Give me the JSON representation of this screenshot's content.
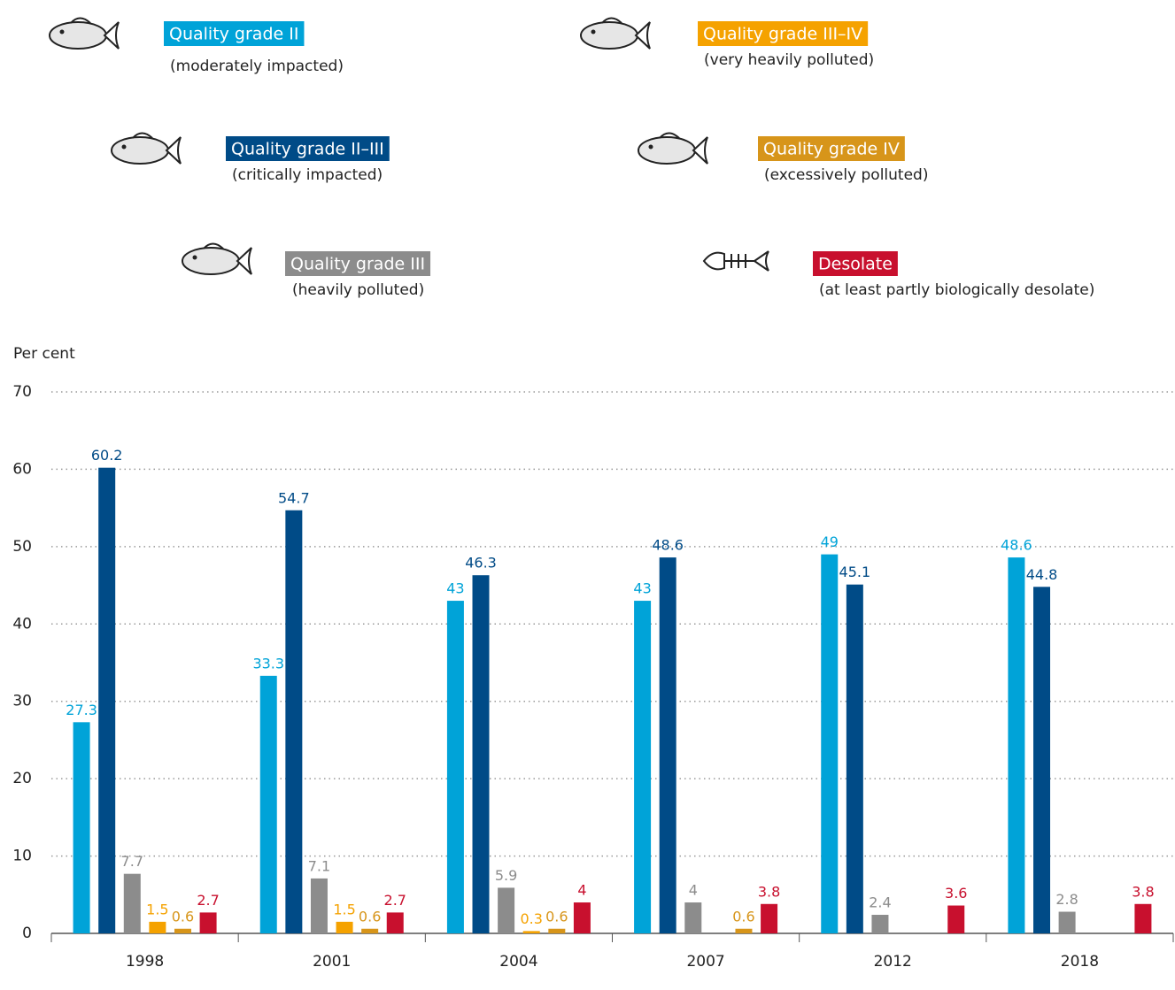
{
  "chart_data": {
    "type": "bar",
    "y_label": "Per cent",
    "categories": [
      "1998",
      "2001",
      "2004",
      "2007",
      "2012",
      "2018"
    ],
    "series": [
      {
        "name": "Quality grade II",
        "description": "(moderately impacted)",
        "color": "#00a3d8",
        "values": [
          27.3,
          33.3,
          43,
          43,
          49,
          48.6
        ]
      },
      {
        "name": "Quality grade II–III",
        "description": "(critically impacted)",
        "color": "#004b87",
        "values": [
          60.2,
          54.7,
          46.3,
          48.6,
          45.1,
          44.8
        ]
      },
      {
        "name": "Quality grade III",
        "description": "(heavily polluted)",
        "color": "#8c8c8c",
        "values": [
          7.7,
          7.1,
          5.9,
          4,
          2.4,
          2.8
        ]
      },
      {
        "name": "Quality grade III–IV",
        "description": "(very heavily polluted)",
        "color": "#f5a200",
        "values": [
          1.5,
          1.5,
          0.3,
          null,
          null,
          null
        ]
      },
      {
        "name": "Quality grade IV",
        "description": "(excessively polluted)",
        "color": "#d7951a",
        "values": [
          0.6,
          0.6,
          0.6,
          0.6,
          null,
          null
        ]
      },
      {
        "name": "Desolate",
        "description": "(at least partly biologically desolate)",
        "color": "#c8102e",
        "values": [
          2.7,
          2.7,
          4,
          3.8,
          3.6,
          3.8
        ]
      }
    ],
    "ylim": [
      0,
      70
    ],
    "yticks": [
      0,
      10,
      20,
      30,
      40,
      50,
      60,
      70
    ],
    "grid": true
  }
}
